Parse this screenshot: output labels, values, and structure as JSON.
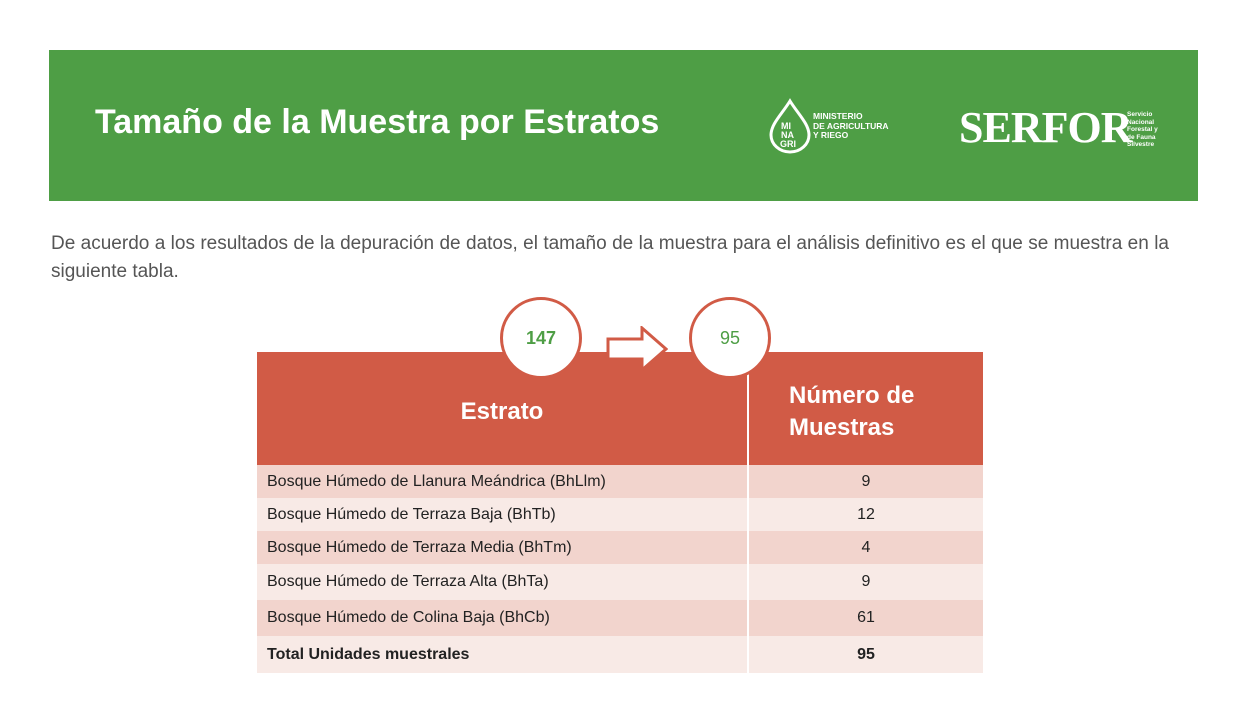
{
  "header": {
    "title": "Tamaño de la Muestra por Estratos",
    "minagri_logo": {
      "mark": [
        "MI",
        "NA",
        "GRI"
      ],
      "text": [
        "MINISTERIO",
        "DE AGRICULTURA",
        "Y RIEGO"
      ]
    },
    "serfor_logo": {
      "word": "SERFOR",
      "subtext": [
        "Servicio",
        "Nacional",
        "Forestal y",
        "de Fauna",
        "Silvestre"
      ]
    },
    "background_color": "#4e9e45"
  },
  "intro": "De acuerdo a los resultados de la depuración de datos, el tamaño de la muestra para el análisis definitivo es el que se muestra en la siguiente tabla.",
  "callouts": {
    "from": "147",
    "to": "95",
    "arrow_icon": "right-arrow-icon"
  },
  "table": {
    "headers": [
      "Estrato",
      "Número de Muestras"
    ],
    "rows": [
      {
        "estrato": "Bosque Húmedo de Llanura Meándrica (BhLlm)",
        "value": "9"
      },
      {
        "estrato": "Bosque Húmedo de Terraza Baja (BhTb)",
        "value": "12"
      },
      {
        "estrato": "Bosque Húmedo de Terraza Media (BhTm)",
        "value": "4"
      },
      {
        "estrato": "Bosque Húmedo de Terraza Alta (BhTa)",
        "value": "9"
      },
      {
        "estrato": "Bosque Húmedo de Colina Baja (BhCb)",
        "value": "61"
      }
    ],
    "total": {
      "label": "Total Unidades muestrales",
      "value": "95"
    },
    "header_color": "#d15b46",
    "row_color_odd": "#f2d4cd",
    "row_color_even": "#f8eae6"
  }
}
